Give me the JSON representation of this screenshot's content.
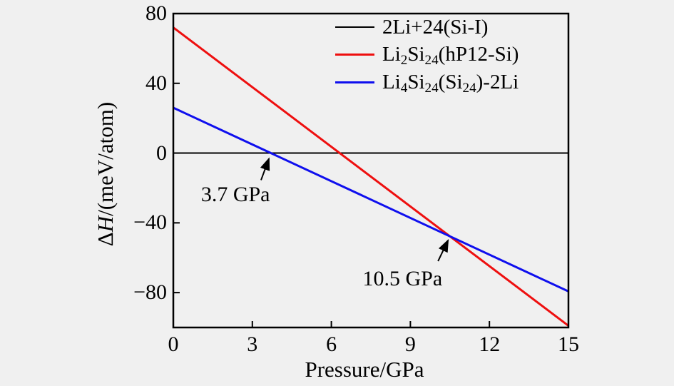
{
  "figure": {
    "background_color": "#f0f0f0",
    "axis_color": "#000000"
  },
  "chart_data": {
    "type": "line",
    "title": "",
    "xlabel": "Pressure/GPa",
    "ylabel": "ΔH/(meV/atom)",
    "ylabel_segments": [
      {
        "t": "Δ"
      },
      {
        "t": "H",
        "italic": true
      },
      {
        "t": "/(meV/atom)"
      }
    ],
    "xlim": [
      0,
      15
    ],
    "ylim": [
      -100,
      80
    ],
    "x_ticks": [
      0,
      3,
      6,
      9,
      12,
      15
    ],
    "x_tick_labels": [
      "0",
      "3",
      "6",
      "9",
      "12",
      "15"
    ],
    "y_ticks": [
      -80,
      -40,
      0,
      40,
      80
    ],
    "y_tick_labels": [
      "−80",
      "−40",
      "0",
      "40",
      "80"
    ],
    "grid": false,
    "legend_position": "inside top right",
    "series": [
      {
        "name": "2Li+24(Si-I)",
        "label_segments": [
          {
            "t": "2Li+24(Si-I)"
          }
        ],
        "color": "#000000",
        "width": 2,
        "x": [
          0,
          15
        ],
        "y": [
          0,
          0
        ]
      },
      {
        "name": "Li2Si24(hP12-Si)",
        "label_segments": [
          {
            "t": "Li"
          },
          {
            "t": "2",
            "sub": true
          },
          {
            "t": "Si"
          },
          {
            "t": "24",
            "sub": true
          },
          {
            "t": "(hP12-Si)"
          }
        ],
        "color": "#ee0f0f",
        "width": 3,
        "x": [
          0,
          15
        ],
        "y": [
          72,
          -99
        ]
      },
      {
        "name": "Li4Si24(Si24)-2Li",
        "label_segments": [
          {
            "t": "Li"
          },
          {
            "t": "4",
            "sub": true
          },
          {
            "t": "Si"
          },
          {
            "t": "24",
            "sub": true
          },
          {
            "t": "(Si"
          },
          {
            "t": "24",
            "sub": true
          },
          {
            "t": ")-2Li"
          }
        ],
        "color": "#0f0fee",
        "width": 3,
        "x": [
          0,
          15
        ],
        "y": [
          26,
          -79.3
        ]
      }
    ],
    "annotations": [
      {
        "text": "3.7 GPa",
        "text_pos": [
          2.36,
          -24
        ],
        "arrow_from": [
          3.33,
          -15.5
        ],
        "arrow_to": [
          3.63,
          -3.2
        ]
      },
      {
        "text": "10.5 GPa",
        "text_pos": [
          8.7,
          -72
        ],
        "arrow_from": [
          10.05,
          -62
        ],
        "arrow_to": [
          10.43,
          -50
        ]
      }
    ]
  }
}
